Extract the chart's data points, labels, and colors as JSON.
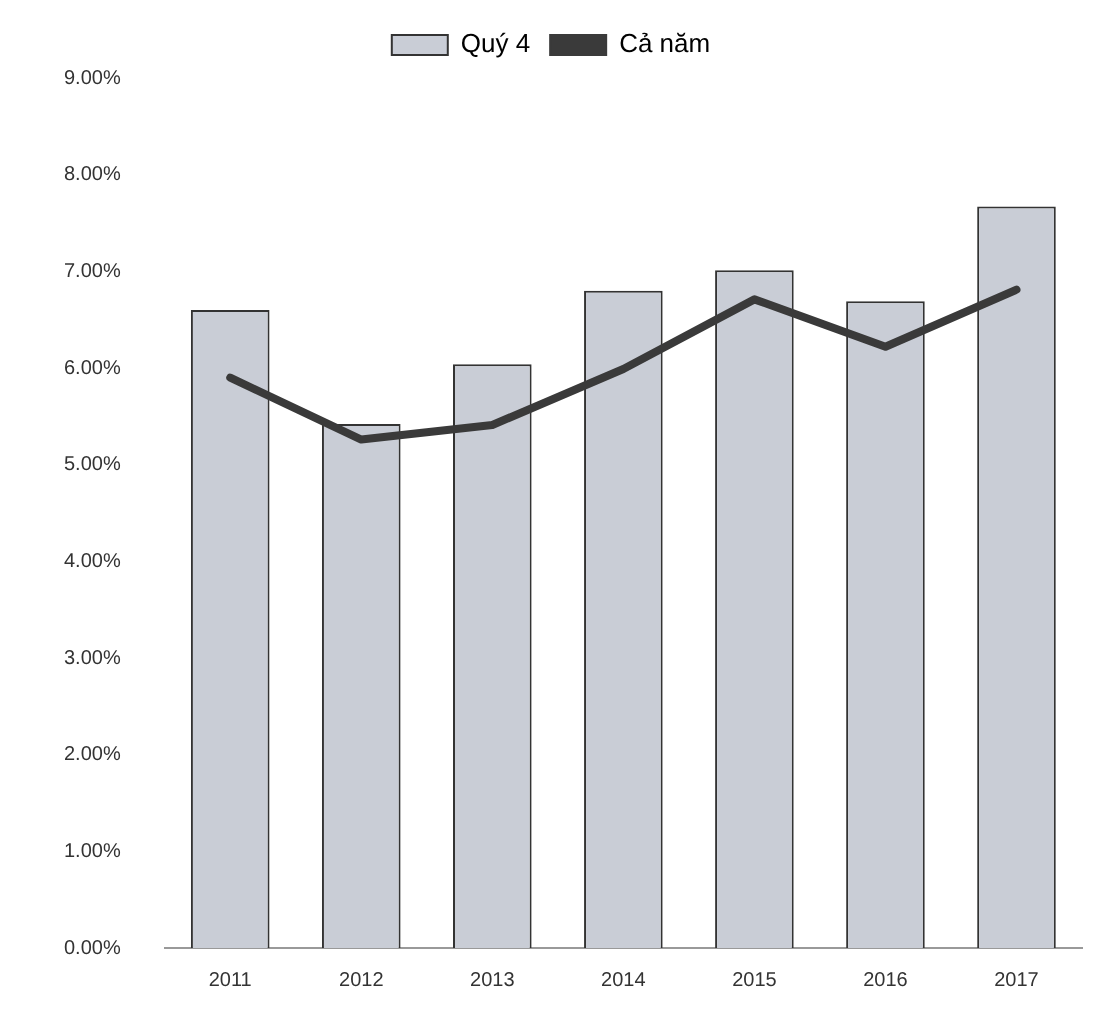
{
  "chart_data": {
    "type": "bar",
    "categories": [
      "2011",
      "2012",
      "2013",
      "2014",
      "2015",
      "2016",
      "2017"
    ],
    "series": [
      {
        "name": "Quý 4",
        "color": "#c9cdd6",
        "values": [
          6.6,
          5.42,
          6.04,
          6.8,
          7.01,
          6.69,
          7.67
        ]
      },
      {
        "name": "Cả năm",
        "type": "line",
        "color": "#3a3a3a",
        "values": [
          5.9,
          5.26,
          5.41,
          5.99,
          6.71,
          6.22,
          6.81
        ]
      }
    ],
    "ylim": [
      0,
      9
    ],
    "yticks": [
      {
        "value": 0,
        "label": "0.00%"
      },
      {
        "value": 1,
        "label": "1.00%"
      },
      {
        "value": 2,
        "label": "2.00%"
      },
      {
        "value": 3,
        "label": "3.00%"
      },
      {
        "value": 4,
        "label": "4.00%"
      },
      {
        "value": 5,
        "label": "5.00%"
      },
      {
        "value": 6,
        "label": "6.00%"
      },
      {
        "value": 7,
        "label": "7.00%"
      },
      {
        "value": 8,
        "label": "8.00%"
      },
      {
        "value": 9,
        "label": "9.00%"
      }
    ],
    "grid": false,
    "legend": "top",
    "marker": "none"
  }
}
